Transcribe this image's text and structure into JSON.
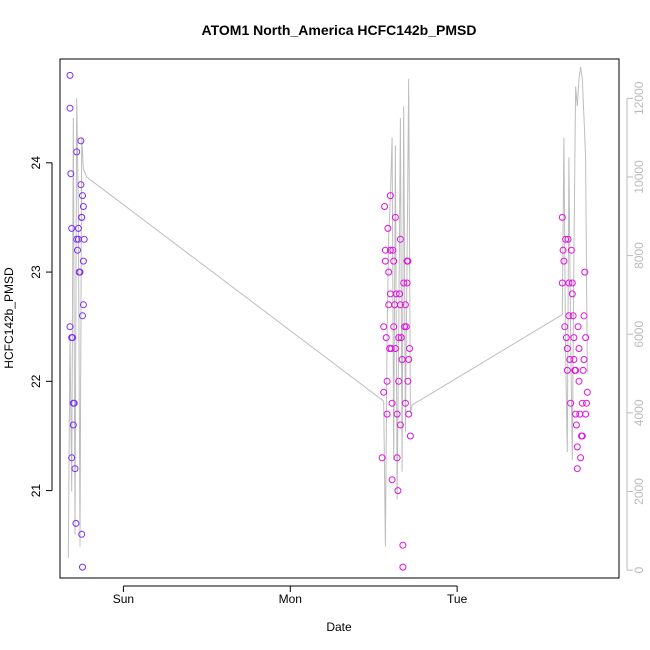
{
  "chart_data": {
    "type": "scatter",
    "title": "ATOM1 North_America HCFC142b_PMSD",
    "xlabel": "Date",
    "ylabel": "HCFC142b_PMSD",
    "x_ticks": [
      "Sun",
      "Mon",
      "Tue"
    ],
    "x_tick_days": [
      1.0,
      2.0,
      3.0
    ],
    "xlim": [
      0.62,
      3.97
    ],
    "ylim": [
      20.2,
      24.95
    ],
    "y_ticks": [
      21,
      22,
      23,
      24
    ],
    "y2_ticks": [
      0,
      2000,
      4000,
      6000,
      8000,
      10000,
      12000
    ],
    "y2lim": [
      -200,
      13000
    ],
    "colors": {
      "early": "#7b2ff7",
      "late": "#e010e0",
      "line": "#bdbdbd"
    },
    "series": [
      {
        "points": [
          [
            0.68,
            24.8
          ],
          [
            0.68,
            24.5
          ],
          [
            0.685,
            23.9
          ],
          [
            0.69,
            23.4
          ],
          [
            0.68,
            22.5
          ],
          [
            0.69,
            22.4
          ],
          [
            0.695,
            22.4
          ],
          [
            0.69,
            21.3
          ],
          [
            0.7,
            21.8
          ],
          [
            0.705,
            21.8
          ],
          [
            0.7,
            21.6
          ],
          [
            0.71,
            21.2
          ],
          [
            0.715,
            20.7
          ],
          [
            0.72,
            24.1
          ],
          [
            0.72,
            23.3
          ],
          [
            0.725,
            23.2
          ],
          [
            0.73,
            23.3
          ],
          [
            0.735,
            23.0
          ],
          [
            0.74,
            23.0
          ],
          [
            0.73,
            23.4
          ],
          [
            0.745,
            24.2
          ],
          [
            0.745,
            23.8
          ],
          [
            0.75,
            23.5
          ],
          [
            0.75,
            23.5
          ],
          [
            0.755,
            23.7
          ],
          [
            0.76,
            23.6
          ],
          [
            0.765,
            23.3
          ],
          [
            0.76,
            23.1
          ],
          [
            0.76,
            22.7
          ],
          [
            0.755,
            22.6
          ],
          [
            0.75,
            20.6
          ],
          [
            0.755,
            20.3
          ]
        ]
      },
      {
        "points": [
          [
            2.55,
            21.3
          ],
          [
            2.56,
            21.9
          ],
          [
            2.56,
            22.5
          ],
          [
            2.565,
            23.6
          ],
          [
            2.57,
            23.2
          ],
          [
            2.57,
            23.1
          ],
          [
            2.575,
            22.4
          ],
          [
            2.58,
            22.0
          ],
          [
            2.58,
            21.7
          ],
          [
            2.585,
            23.4
          ],
          [
            2.59,
            23.0
          ],
          [
            2.59,
            22.7
          ],
          [
            2.595,
            22.3
          ],
          [
            2.6,
            23.7
          ],
          [
            2.6,
            23.2
          ],
          [
            2.6,
            22.8
          ],
          [
            2.605,
            22.3
          ],
          [
            2.61,
            21.8
          ],
          [
            2.61,
            21.1
          ],
          [
            2.615,
            23.2
          ],
          [
            2.62,
            23.1
          ],
          [
            2.62,
            22.5
          ],
          [
            2.625,
            22.7
          ],
          [
            2.63,
            22.3
          ],
          [
            2.63,
            23.5
          ],
          [
            2.635,
            22.8
          ],
          [
            2.64,
            21.7
          ],
          [
            2.64,
            21.3
          ],
          [
            2.645,
            21.0
          ],
          [
            2.65,
            22.4
          ],
          [
            2.65,
            22.0
          ],
          [
            2.655,
            22.8
          ],
          [
            2.66,
            23.3
          ],
          [
            2.66,
            22.7
          ],
          [
            2.665,
            22.4
          ],
          [
            2.67,
            22.2
          ],
          [
            2.675,
            20.5
          ],
          [
            2.675,
            20.3
          ],
          [
            2.68,
            22.9
          ],
          [
            2.685,
            22.5
          ],
          [
            2.69,
            22.7
          ],
          [
            2.695,
            22.5
          ],
          [
            2.7,
            23.1
          ],
          [
            2.7,
            22.9
          ],
          [
            2.705,
            22.0
          ],
          [
            2.71,
            22.2
          ],
          [
            2.71,
            21.7
          ],
          [
            2.715,
            22.3
          ],
          [
            2.72,
            21.5
          ],
          [
            2.705,
            23.1
          ],
          [
            2.69,
            21.8
          ],
          [
            2.66,
            21.6
          ]
        ]
      },
      {
        "points": [
          [
            3.63,
            23.5
          ],
          [
            3.635,
            23.2
          ],
          [
            3.64,
            23.1
          ],
          [
            3.63,
            22.9
          ],
          [
            3.645,
            22.5
          ],
          [
            3.65,
            23.3
          ],
          [
            3.655,
            22.4
          ],
          [
            3.66,
            22.3
          ],
          [
            3.66,
            22.1
          ],
          [
            3.665,
            23.3
          ],
          [
            3.67,
            22.9
          ],
          [
            3.67,
            22.6
          ],
          [
            3.675,
            22.2
          ],
          [
            3.68,
            21.8
          ],
          [
            3.685,
            23.2
          ],
          [
            3.69,
            22.9
          ],
          [
            3.69,
            22.8
          ],
          [
            3.695,
            22.6
          ],
          [
            3.7,
            22.4
          ],
          [
            3.7,
            22.2
          ],
          [
            3.705,
            22.1
          ],
          [
            3.71,
            22.1
          ],
          [
            3.71,
            21.7
          ],
          [
            3.715,
            21.6
          ],
          [
            3.72,
            21.4
          ],
          [
            3.72,
            21.2
          ],
          [
            3.725,
            22.5
          ],
          [
            3.73,
            22.3
          ],
          [
            3.73,
            22.0
          ],
          [
            3.735,
            21.7
          ],
          [
            3.74,
            21.3
          ],
          [
            3.745,
            21.5
          ],
          [
            3.75,
            21.5
          ],
          [
            3.75,
            21.8
          ],
          [
            3.755,
            22.1
          ],
          [
            3.76,
            22.2
          ],
          [
            3.76,
            22.6
          ],
          [
            3.765,
            23.0
          ],
          [
            3.77,
            22.4
          ],
          [
            3.77,
            21.7
          ],
          [
            3.775,
            21.8
          ],
          [
            3.78,
            21.9
          ]
        ]
      }
    ],
    "altitude_line": {
      "x": [
        0.67,
        0.68,
        0.69,
        0.7,
        0.71,
        0.72,
        0.73,
        0.74,
        0.75,
        0.76,
        0.78,
        2.56,
        2.57,
        2.58,
        2.59,
        2.6,
        2.61,
        2.62,
        2.63,
        2.64,
        2.65,
        2.66,
        2.67,
        2.68,
        2.69,
        2.7,
        2.71,
        2.72,
        2.73,
        3.63,
        3.64,
        3.65,
        3.66,
        3.67,
        3.68,
        3.69,
        3.7,
        3.71,
        3.72,
        3.73,
        3.74,
        3.75,
        3.76,
        3.77,
        3.78
      ],
      "y": [
        300,
        6000,
        2000,
        11500,
        900,
        12000,
        9000,
        600,
        11000,
        10200,
        10000,
        4300,
        600,
        6000,
        8500,
        9500,
        11000,
        2800,
        10800,
        1800,
        6000,
        11500,
        2500,
        11800,
        3500,
        8000,
        12500,
        4000,
        4200,
        6500,
        11000,
        5500,
        3000,
        10500,
        6000,
        2800,
        8000,
        12300,
        11800,
        12500,
        12800,
        12500,
        11500,
        10500,
        5000
      ]
    }
  }
}
